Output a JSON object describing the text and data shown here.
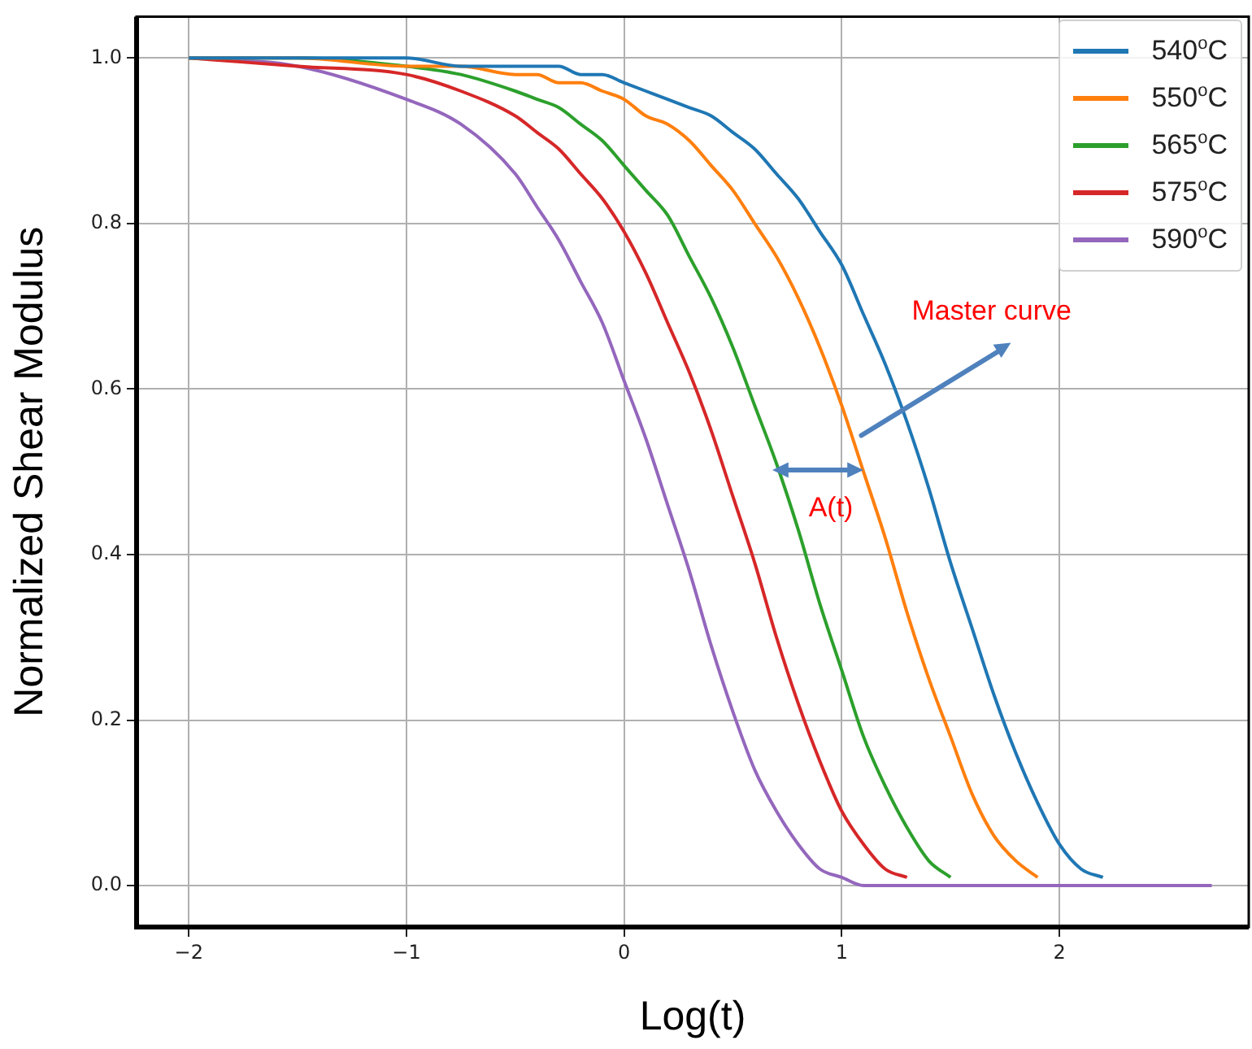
{
  "chart_data": {
    "type": "line",
    "xlabel": "Log(t)",
    "ylabel": "Normalized Shear Modulus",
    "x": [
      -2,
      -1.5,
      -1,
      -0.75,
      -0.5,
      -0.4,
      -0.3,
      -0.2,
      -0.1,
      0,
      0.1,
      0.2,
      0.3,
      0.4,
      0.5,
      0.6,
      0.7,
      0.8,
      0.9,
      1.0,
      1.1,
      1.2,
      1.3,
      1.4,
      1.5,
      1.6,
      1.7,
      1.8,
      1.9,
      2.0,
      2.1,
      2.2,
      2.3,
      2.4,
      2.7
    ],
    "series": [
      {
        "name": "540$^{o}$C",
        "color": "#1f77b4",
        "values": [
          1.0,
          1.0,
          1.0,
          0.99,
          0.99,
          0.99,
          0.99,
          0.98,
          0.98,
          0.97,
          0.96,
          0.95,
          0.94,
          0.93,
          0.91,
          0.89,
          0.86,
          0.83,
          0.79,
          0.75,
          0.69,
          0.63,
          0.56,
          0.48,
          0.39,
          0.31,
          0.23,
          0.16,
          0.1,
          0.05,
          0.02,
          0.01,
          null,
          null,
          null
        ]
      },
      {
        "name": "550$^{o}$C",
        "color": "#ff7f0e",
        "values": [
          1.0,
          1.0,
          0.99,
          0.99,
          0.98,
          0.98,
          0.97,
          0.97,
          0.96,
          0.95,
          0.93,
          0.92,
          0.9,
          0.87,
          0.84,
          0.8,
          0.76,
          0.71,
          0.65,
          0.58,
          0.5,
          0.42,
          0.33,
          0.25,
          0.18,
          0.11,
          0.06,
          0.03,
          0.01,
          null,
          null,
          null,
          null,
          null,
          null
        ]
      },
      {
        "name": "565$^{o}$C",
        "color": "#2ca02c",
        "values": [
          1.0,
          1.0,
          0.99,
          0.98,
          0.96,
          0.95,
          0.94,
          0.92,
          0.9,
          0.87,
          0.84,
          0.81,
          0.76,
          0.71,
          0.65,
          0.58,
          0.51,
          0.43,
          0.34,
          0.26,
          0.18,
          0.12,
          0.07,
          0.03,
          0.01,
          null,
          null,
          null,
          null,
          null,
          null,
          null,
          null,
          null,
          null
        ]
      },
      {
        "name": "575$^{o}$C",
        "color": "#d62728",
        "values": [
          1.0,
          0.99,
          0.98,
          0.96,
          0.93,
          0.91,
          0.89,
          0.86,
          0.83,
          0.79,
          0.74,
          0.68,
          0.62,
          0.55,
          0.47,
          0.39,
          0.3,
          0.22,
          0.15,
          0.09,
          0.05,
          0.02,
          0.01,
          null,
          null,
          null,
          null,
          null,
          null,
          null,
          null,
          null,
          null,
          null,
          null
        ]
      },
      {
        "name": "590$^{o}$C",
        "color": "#9467bd",
        "values": [
          1.0,
          0.99,
          0.95,
          0.92,
          0.86,
          0.82,
          0.78,
          0.73,
          0.68,
          0.61,
          0.54,
          0.46,
          0.38,
          0.29,
          0.21,
          0.14,
          0.09,
          0.05,
          0.02,
          0.01,
          0.0,
          0.0,
          0.0,
          0.0,
          0.0,
          0.0,
          0.0,
          0.0,
          0.0,
          0.0,
          0.0,
          0.0,
          0.0,
          0.0,
          0.0
        ]
      }
    ],
    "xlim": [
      -2.24,
      2.87
    ],
    "xticks": [
      {
        "value": -2,
        "label": "−2"
      },
      {
        "value": -1,
        "label": "−1"
      },
      0,
      1,
      2
    ],
    "ylim": [
      -0.05,
      1.05
    ],
    "yticks": [
      {
        "value": 0,
        "label": "0.0"
      },
      {
        "value": 0.2,
        "label": "0.2"
      },
      {
        "value": 0.4,
        "label": "0.4"
      },
      {
        "value": 0.6,
        "label": "0.6"
      },
      {
        "value": 0.8,
        "label": "0.8"
      },
      {
        "value": 1,
        "label": "1.0"
      }
    ],
    "grid": true,
    "legend": "top right",
    "marker": "none",
    "line_style": "solid",
    "annotations": [
      {
        "text": "Master curve",
        "x": 1.06,
        "y": 0.54
      },
      "A(t)"
    ]
  }
}
